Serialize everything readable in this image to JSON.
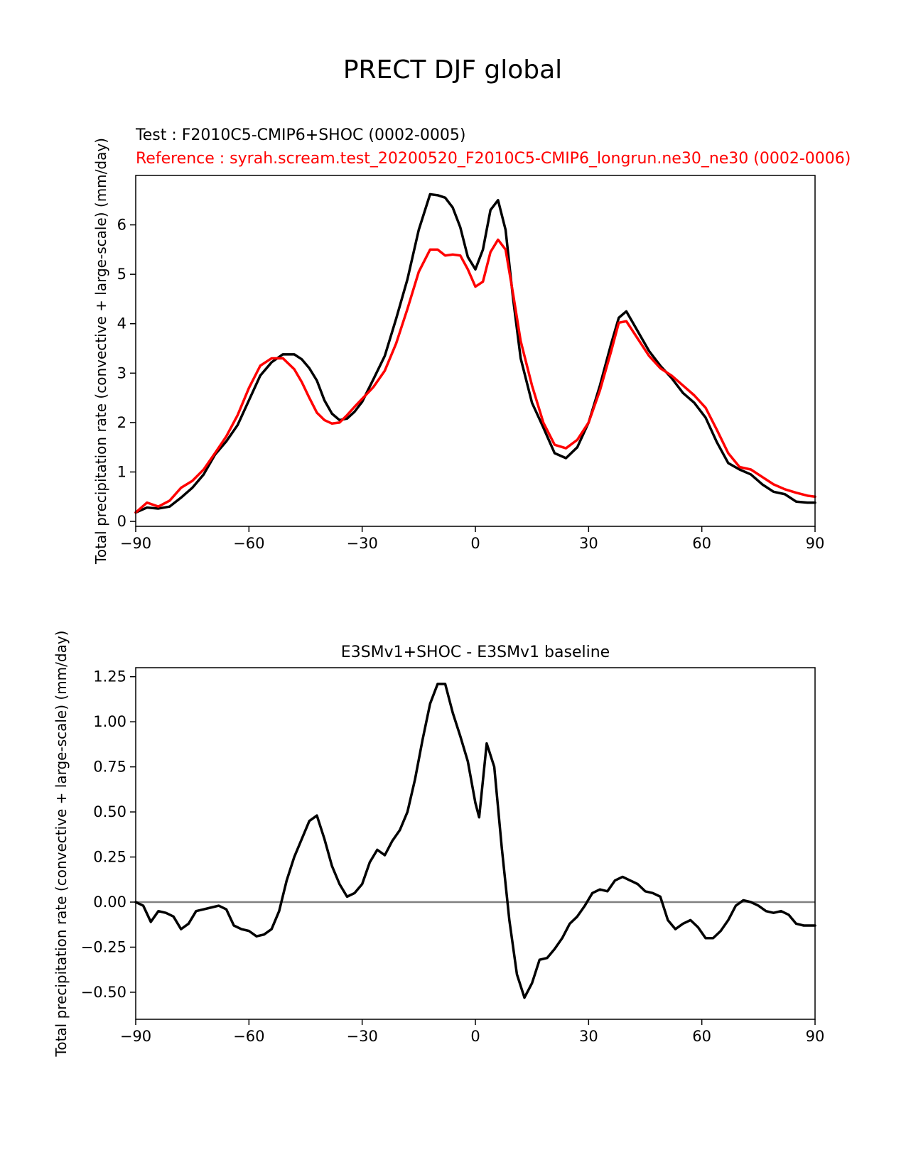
{
  "figure": {
    "suptitle": "PRECT DJF global"
  },
  "chart_data": [
    {
      "type": "line",
      "title_left_test": "Test : F2010C5-CMIP6+SHOC (0002-0005)",
      "title_left_ref": "Reference : syrah.scream.test_20200520_F2010C5-CMIP6_longrun.ne30_ne30 (0002-0006)",
      "xlabel": "",
      "ylabel": "Total precipitation rate (convective + large-scale) (mm/day)",
      "xlim": [
        -90,
        90
      ],
      "ylim": [
        -0.1,
        7.0
      ],
      "xticks": [
        -90,
        -60,
        -30,
        0,
        30,
        60,
        90
      ],
      "xtick_labels": [
        "−90",
        "−60",
        "−30",
        "0",
        "30",
        "60",
        "90"
      ],
      "yticks": [
        0,
        1,
        2,
        3,
        4,
        5,
        6
      ],
      "ytick_labels": [
        "0",
        "1",
        "2",
        "3",
        "4",
        "5",
        "6"
      ],
      "series": [
        {
          "name": "Test",
          "color": "#000000",
          "x": [
            -90,
            -87,
            -84,
            -81,
            -78,
            -75,
            -72,
            -69,
            -66,
            -63,
            -60,
            -57,
            -54,
            -51,
            -48,
            -46,
            -44,
            -42,
            -40,
            -38,
            -36,
            -34,
            -32,
            -30,
            -27,
            -24,
            -21,
            -18,
            -15,
            -12,
            -10,
            -8,
            -6,
            -4,
            -2,
            0,
            2,
            4,
            6,
            8,
            10,
            12,
            15,
            18,
            21,
            24,
            27,
            30,
            33,
            36,
            38,
            40,
            43,
            46,
            49,
            52,
            55,
            58,
            61,
            64,
            67,
            70,
            73,
            76,
            79,
            82,
            85,
            88,
            90
          ],
          "values": [
            0.18,
            0.28,
            0.26,
            0.3,
            0.48,
            0.68,
            0.95,
            1.35,
            1.62,
            1.95,
            2.45,
            2.95,
            3.22,
            3.38,
            3.38,
            3.28,
            3.1,
            2.85,
            2.45,
            2.18,
            2.05,
            2.08,
            2.22,
            2.42,
            2.88,
            3.35,
            4.1,
            4.9,
            5.9,
            6.62,
            6.6,
            6.55,
            6.35,
            5.95,
            5.35,
            5.1,
            5.5,
            6.3,
            6.5,
            5.9,
            4.5,
            3.3,
            2.4,
            1.9,
            1.38,
            1.28,
            1.5,
            2.0,
            2.75,
            3.6,
            4.12,
            4.25,
            3.85,
            3.45,
            3.15,
            2.9,
            2.6,
            2.4,
            2.1,
            1.6,
            1.18,
            1.05,
            0.95,
            0.75,
            0.6,
            0.55,
            0.4,
            0.38,
            0.38
          ]
        },
        {
          "name": "Reference",
          "color": "#ff0000",
          "x": [
            -90,
            -87,
            -84,
            -81,
            -78,
            -75,
            -72,
            -69,
            -66,
            -63,
            -60,
            -57,
            -54,
            -51,
            -48,
            -46,
            -44,
            -42,
            -40,
            -38,
            -36,
            -34,
            -32,
            -30,
            -27,
            -24,
            -21,
            -18,
            -15,
            -12,
            -10,
            -8,
            -6,
            -4,
            -2,
            0,
            2,
            4,
            6,
            8,
            10,
            12,
            15,
            18,
            21,
            24,
            27,
            30,
            33,
            36,
            38,
            40,
            43,
            46,
            49,
            52,
            55,
            58,
            61,
            64,
            67,
            70,
            73,
            76,
            79,
            82,
            85,
            88,
            90
          ],
          "values": [
            0.18,
            0.38,
            0.3,
            0.42,
            0.68,
            0.82,
            1.05,
            1.38,
            1.72,
            2.15,
            2.7,
            3.15,
            3.3,
            3.3,
            3.08,
            2.82,
            2.5,
            2.2,
            2.05,
            1.98,
            2.0,
            2.15,
            2.32,
            2.48,
            2.72,
            3.05,
            3.6,
            4.3,
            5.05,
            5.5,
            5.5,
            5.38,
            5.4,
            5.38,
            5.1,
            4.75,
            4.85,
            5.45,
            5.7,
            5.5,
            4.6,
            3.65,
            2.75,
            2.0,
            1.55,
            1.48,
            1.65,
            2.0,
            2.65,
            3.45,
            4.02,
            4.05,
            3.7,
            3.35,
            3.1,
            2.95,
            2.75,
            2.55,
            2.3,
            1.85,
            1.38,
            1.1,
            1.05,
            0.9,
            0.75,
            0.65,
            0.58,
            0.52,
            0.5
          ]
        }
      ]
    },
    {
      "type": "line",
      "title": "E3SMv1+SHOC - E3SMv1 baseline",
      "xlabel": "",
      "ylabel": "Total precipitation rate (convective + large-scale) (mm/day)",
      "xlim": [
        -90,
        90
      ],
      "ylim": [
        -0.65,
        1.3
      ],
      "xticks": [
        -90,
        -60,
        -30,
        0,
        30,
        60,
        90
      ],
      "xtick_labels": [
        "−90",
        "−60",
        "−30",
        "0",
        "30",
        "60",
        "90"
      ],
      "yticks": [
        -0.5,
        -0.25,
        0.0,
        0.25,
        0.5,
        0.75,
        1.0,
        1.25
      ],
      "ytick_labels": [
        "−0.50",
        "−0.25",
        "0.00",
        "0.25",
        "0.50",
        "0.75",
        "1.00",
        "1.25"
      ],
      "reference_line": {
        "y": 0.0,
        "color": "#808080"
      },
      "series": [
        {
          "name": "Difference",
          "color": "#000000",
          "x": [
            -90,
            -88,
            -86,
            -84,
            -82,
            -80,
            -78,
            -76,
            -74,
            -72,
            -70,
            -68,
            -66,
            -64,
            -62,
            -60,
            -58,
            -56,
            -54,
            -52,
            -50,
            -48,
            -46,
            -44,
            -42,
            -40,
            -38,
            -36,
            -34,
            -32,
            -30,
            -28,
            -26,
            -24,
            -22,
            -20,
            -18,
            -16,
            -14,
            -12,
            -10,
            -8,
            -6,
            -4,
            -2,
            0,
            1,
            3,
            5,
            7,
            9,
            11,
            13,
            15,
            17,
            19,
            21,
            23,
            25,
            27,
            29,
            31,
            33,
            35,
            37,
            39,
            41,
            43,
            45,
            47,
            49,
            51,
            53,
            55,
            57,
            59,
            61,
            63,
            65,
            67,
            69,
            71,
            73,
            75,
            77,
            79,
            81,
            83,
            85,
            87,
            90
          ],
          "values": [
            0.0,
            -0.02,
            -0.11,
            -0.05,
            -0.06,
            -0.08,
            -0.15,
            -0.12,
            -0.05,
            -0.04,
            -0.03,
            -0.02,
            -0.04,
            -0.13,
            -0.15,
            -0.16,
            -0.19,
            -0.18,
            -0.15,
            -0.05,
            0.12,
            0.25,
            0.35,
            0.45,
            0.48,
            0.35,
            0.2,
            0.1,
            0.03,
            0.05,
            0.1,
            0.22,
            0.29,
            0.26,
            0.34,
            0.4,
            0.5,
            0.68,
            0.9,
            1.1,
            1.21,
            1.21,
            1.05,
            0.92,
            0.78,
            0.55,
            0.47,
            0.88,
            0.75,
            0.3,
            -0.1,
            -0.4,
            -0.53,
            -0.45,
            -0.32,
            -0.31,
            -0.26,
            -0.2,
            -0.12,
            -0.08,
            -0.02,
            0.05,
            0.07,
            0.06,
            0.12,
            0.14,
            0.12,
            0.1,
            0.06,
            0.05,
            0.03,
            -0.1,
            -0.15,
            -0.12,
            -0.1,
            -0.14,
            -0.2,
            -0.2,
            -0.16,
            -0.1,
            -0.02,
            0.01,
            0.0,
            -0.02,
            -0.05,
            -0.06,
            -0.05,
            -0.07,
            -0.12,
            -0.13,
            -0.13
          ]
        }
      ]
    }
  ]
}
